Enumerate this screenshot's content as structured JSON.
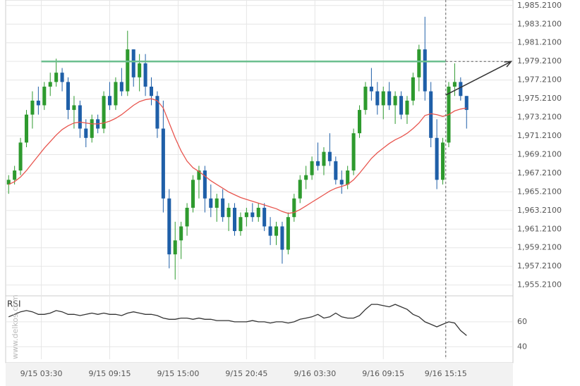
{
  "chart_data": {
    "type": "candlestick",
    "watermark": "www.delkos.com",
    "rsi_label": "RSI",
    "up_color": "#2e9a2e",
    "down_color": "#1f5fa8",
    "ma_color": "#e8554e",
    "rsi_color": "#333333",
    "level_color": "#6cbf8f",
    "arrow_color": "#333333",
    "xlim": [
      0,
      85.3
    ],
    "xticks": [
      {
        "value": 6,
        "label": "9/15 03:30"
      },
      {
        "value": 17.5,
        "label": "9/15 09:15"
      },
      {
        "value": 29,
        "label": "9/15 15:00"
      },
      {
        "value": 40.5,
        "label": "9/15 20:45"
      },
      {
        "value": 52,
        "label": "9/16 03:30"
      },
      {
        "value": 63.5,
        "label": "9/16 09:15"
      },
      {
        "value": 74,
        "label": "9/16 15:15"
      }
    ],
    "ylim": [
      1954.2,
      1985.8
    ],
    "yticks": [
      {
        "value": 1955.21,
        "label": "1,955.2100"
      },
      {
        "value": 1957.21,
        "label": "1,957.2100"
      },
      {
        "value": 1959.21,
        "label": "1,959.2100"
      },
      {
        "value": 1961.21,
        "label": "1,961.2100"
      },
      {
        "value": 1963.21,
        "label": "1,963.2100"
      },
      {
        "value": 1965.21,
        "label": "1,965.2100"
      },
      {
        "value": 1967.21,
        "label": "1,967.2100"
      },
      {
        "value": 1969.21,
        "label": "1,969.2100"
      },
      {
        "value": 1971.21,
        "label": "1,971.2100"
      },
      {
        "value": 1973.21,
        "label": "1,973.2100"
      },
      {
        "value": 1975.21,
        "label": "1,975.2100"
      },
      {
        "value": 1977.21,
        "label": "1,977.2100"
      },
      {
        "value": 1979.21,
        "label": "1,979.2100"
      },
      {
        "value": 1981.21,
        "label": "1,981.2100"
      },
      {
        "value": 1983.21,
        "label": "1,983.2100"
      },
      {
        "value": 1985.21,
        "label": "1,985.2100"
      }
    ],
    "rsi_ylim": [
      30,
      78
    ],
    "rsi_yticks": [
      40,
      60
    ],
    "level": 1979.2,
    "current_x": 74,
    "arrow": {
      "x": [
        74,
        85
      ],
      "y": [
        1975.6,
        1979.2
      ]
    },
    "open": [
      1966,
      1966.5,
      1967.5,
      1970.5,
      1973.5,
      1975,
      1974.5,
      1976.5,
      1977,
      1978,
      1977,
      1974,
      1974.5,
      1972,
      1971,
      1973,
      1972,
      1975.5,
      1974.5,
      1977,
      1976,
      1980.5,
      1977.5,
      1979,
      1976.5,
      1975.5,
      1972,
      1964.5,
      1958.5,
      1960,
      1961.5,
      1963.5,
      1966.5,
      1967.5,
      1964.5,
      1963.5,
      1964.5,
      1962.5,
      1963.5,
      1961,
      1962.5,
      1963,
      1962.5,
      1963.5,
      1961.5,
      1960.5,
      1961.5,
      1959,
      1962.5,
      1964.5,
      1966.5,
      1967,
      1968.5,
      1968,
      1969.5,
      1968.5,
      1966.5,
      1966,
      1967.5,
      1971.5,
      1974,
      1976.5,
      1976,
      1974.5,
      1976,
      1974.5,
      1975.5,
      1973.5,
      1975,
      1977.5,
      1980.5,
      1976,
      1971,
      1966.5,
      1970.5,
      1976.5,
      1977,
      1975.5
    ],
    "high": [
      1967,
      1968,
      1971,
      1974,
      1976,
      1976.5,
      1977,
      1978,
      1979.5,
      1978.5,
      1977.5,
      1975.5,
      1975,
      1973,
      1973.5,
      1973.5,
      1976,
      1977,
      1977.5,
      1978.5,
      1982.5,
      1980.5,
      1980,
      1980,
      1977.5,
      1976,
      1975,
      1965.5,
      1962,
      1962,
      1964,
      1967,
      1968,
      1968,
      1966,
      1965,
      1965.5,
      1964,
      1964,
      1963,
      1963.5,
      1964,
      1964,
      1964,
      1962.5,
      1962,
      1962,
      1963,
      1965,
      1967,
      1968,
      1969,
      1970.5,
      1970,
      1971.5,
      1969,
      1967.5,
      1968,
      1972,
      1974.5,
      1977,
      1978.5,
      1977,
      1976.5,
      1977,
      1976,
      1976,
      1975.5,
      1978,
      1981,
      1984,
      1977,
      1973,
      1971,
      1977,
      1979,
      1977.5,
      1975.5
    ],
    "low": [
      1965,
      1966,
      1967,
      1970,
      1972,
      1973.5,
      1974,
      1975.5,
      1976.5,
      1976,
      1973,
      1972,
      1971,
      1970,
      1970.5,
      1971.5,
      1971.5,
      1974,
      1974,
      1975.5,
      1975.5,
      1976.5,
      1976,
      1975.5,
      1974.5,
      1971,
      1963,
      1957,
      1955.8,
      1958,
      1960.5,
      1963,
      1964.5,
      1963,
      1962.5,
      1962,
      1962,
      1961,
      1960.5,
      1960.5,
      1961.5,
      1962,
      1962,
      1961,
      1959.5,
      1959.5,
      1957.5,
      1958.5,
      1962,
      1964,
      1965.5,
      1966.5,
      1967.5,
      1967,
      1968,
      1966,
      1965,
      1965.5,
      1967,
      1971,
      1973.5,
      1975,
      1973.5,
      1973,
      1974,
      1972.5,
      1973,
      1972.5,
      1974.5,
      1976,
      1975,
      1970,
      1965.5,
      1966,
      1970,
      1975.5,
      1975,
      1972
    ],
    "close": [
      1966.5,
      1967.5,
      1970.5,
      1973.5,
      1975,
      1974.5,
      1976.5,
      1977,
      1978,
      1977,
      1974,
      1974.5,
      1972,
      1971,
      1973,
      1972,
      1975.5,
      1974.5,
      1977,
      1976,
      1980.5,
      1977.5,
      1979,
      1976.5,
      1975.5,
      1972,
      1964.5,
      1958.5,
      1960,
      1961.5,
      1963.5,
      1966.5,
      1967.5,
      1964.5,
      1963.5,
      1964.5,
      1962.5,
      1963.5,
      1961,
      1962.5,
      1963,
      1962.5,
      1963.5,
      1961.5,
      1960.5,
      1961.5,
      1959,
      1962.5,
      1964.5,
      1966.5,
      1967,
      1968.5,
      1968,
      1969.5,
      1968.5,
      1966.5,
      1966,
      1967.5,
      1971.5,
      1974,
      1976.5,
      1976,
      1974.5,
      1976,
      1974.5,
      1975.5,
      1973.5,
      1975,
      1977.5,
      1980.5,
      1976,
      1971,
      1966.5,
      1970.5,
      1976.5,
      1977,
      1975.5,
      1974
    ],
    "ma": [
      1966,
      1966.3,
      1966.8,
      1967.5,
      1968.3,
      1969.1,
      1969.9,
      1970.6,
      1971.3,
      1971.9,
      1972.3,
      1972.6,
      1972.7,
      1972.6,
      1972.5,
      1972.5,
      1972.6,
      1972.8,
      1973.1,
      1973.5,
      1974,
      1974.5,
      1974.9,
      1975.1,
      1975.2,
      1975,
      1974.2,
      1972.6,
      1971,
      1969.6,
      1968.5,
      1967.8,
      1967.4,
      1966.9,
      1966.4,
      1966,
      1965.6,
      1965.2,
      1964.9,
      1964.6,
      1964.4,
      1964.2,
      1964,
      1963.8,
      1963.6,
      1963.4,
      1963.1,
      1962.9,
      1963,
      1963.3,
      1963.7,
      1964.1,
      1964.5,
      1964.9,
      1965.3,
      1965.6,
      1965.8,
      1966,
      1966.5,
      1967.2,
      1968,
      1968.8,
      1969.4,
      1969.9,
      1970.4,
      1970.8,
      1971.1,
      1971.5,
      1972,
      1972.6,
      1973.4,
      1973.6,
      1973.5,
      1973.3,
      1973.5,
      1973.9,
      1974.1,
      1974.2
    ],
    "rsi": [
      64,
      66,
      68,
      69,
      68,
      66,
      66,
      67,
      69,
      68,
      66,
      66,
      65,
      66,
      67,
      66,
      67,
      66,
      66,
      65,
      67,
      68,
      67,
      66,
      66,
      65,
      63,
      62,
      62,
      63,
      63,
      62,
      63,
      62,
      62,
      61,
      61,
      61,
      60,
      60,
      60,
      61,
      60,
      60,
      59,
      60,
      60,
      59,
      60,
      62,
      63,
      64,
      66,
      63,
      64,
      67,
      64,
      63,
      63,
      65,
      70,
      74,
      74,
      73,
      72,
      74,
      72,
      70,
      66,
      64,
      60,
      58,
      56,
      58,
      60,
      59,
      53,
      49
    ]
  }
}
